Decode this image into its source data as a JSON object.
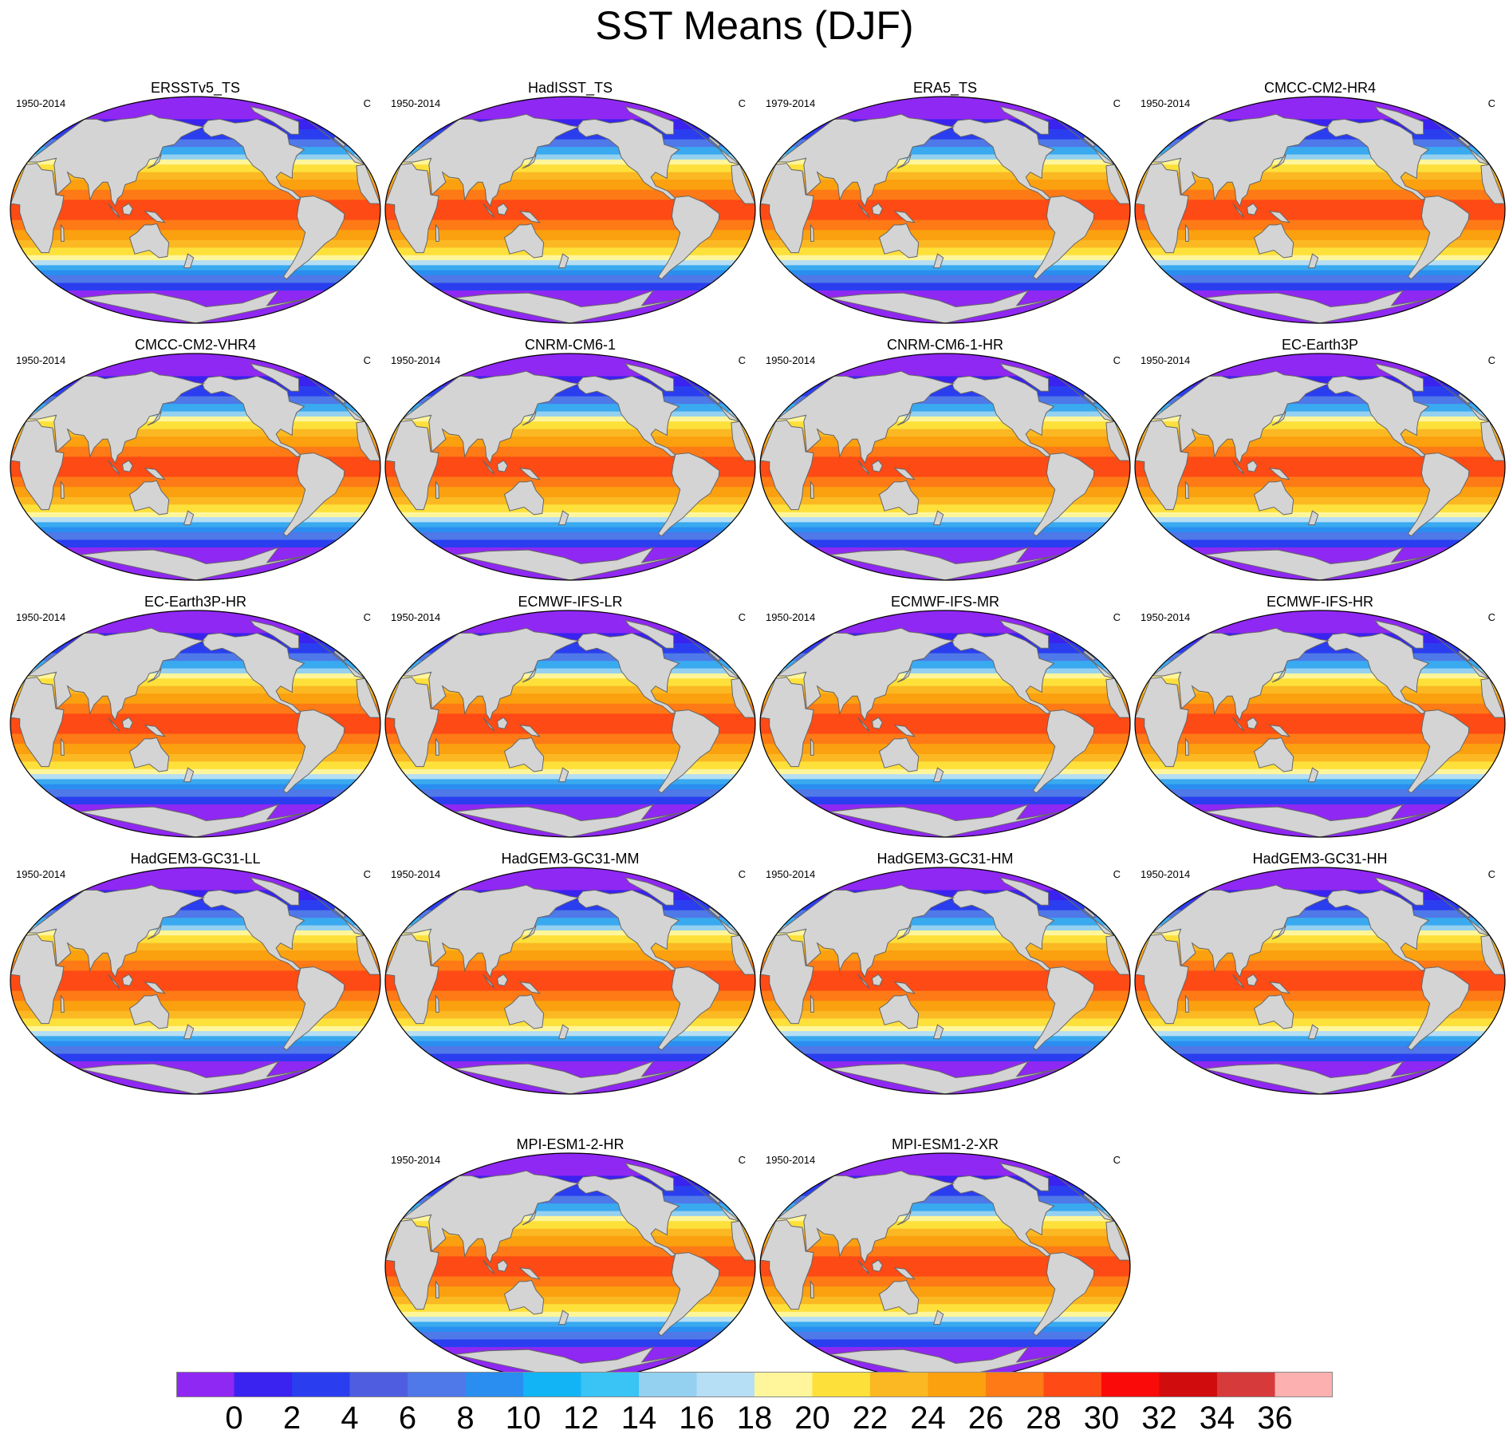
{
  "title": "SST Means (DJF)",
  "unit": "C",
  "colors": {
    "land": "#d4d4d4",
    "coast": "#666666",
    "bands": [
      {
        "lat_from": 90,
        "lat_to": 72,
        "color": "#8f28f2"
      },
      {
        "lat_from": 72,
        "lat_to": 64,
        "color": "#3a22f0"
      },
      {
        "lat_from": 64,
        "lat_to": 56,
        "color": "#2a3ef0"
      },
      {
        "lat_from": 56,
        "lat_to": 50,
        "color": "#4f78e8"
      },
      {
        "lat_from": 50,
        "lat_to": 44,
        "color": "#39a9f0"
      },
      {
        "lat_from": 44,
        "lat_to": 40,
        "color": "#94d0f0"
      },
      {
        "lat_from": 40,
        "lat_to": 36,
        "color": "#fff59a"
      },
      {
        "lat_from": 36,
        "lat_to": 30,
        "color": "#fde03a"
      },
      {
        "lat_from": 30,
        "lat_to": 24,
        "color": "#fbb823"
      },
      {
        "lat_from": 24,
        "lat_to": 16,
        "color": "#fba00e"
      },
      {
        "lat_from": 16,
        "lat_to": 8,
        "color": "#fd7a16"
      },
      {
        "lat_from": 8,
        "lat_to": -8,
        "color": "#fe4a14"
      },
      {
        "lat_from": -8,
        "lat_to": -16,
        "color": "#fd7a16"
      },
      {
        "lat_from": -16,
        "lat_to": -24,
        "color": "#fba00e"
      },
      {
        "lat_from": -24,
        "lat_to": -30,
        "color": "#fbb823"
      },
      {
        "lat_from": -30,
        "lat_to": -36,
        "color": "#fde03a"
      },
      {
        "lat_from": -36,
        "lat_to": -40,
        "color": "#fff59a"
      },
      {
        "lat_from": -40,
        "lat_to": -44,
        "color": "#b6def4"
      },
      {
        "lat_from": -44,
        "lat_to": -48,
        "color": "#39a9f0"
      },
      {
        "lat_from": -48,
        "lat_to": -52,
        "color": "#2a8ef0"
      },
      {
        "lat_from": -52,
        "lat_to": -58,
        "color": "#4f78e8"
      },
      {
        "lat_from": -58,
        "lat_to": -64,
        "color": "#2a3ef0"
      },
      {
        "lat_from": -64,
        "lat_to": -90,
        "color": "#8f28f2"
      }
    ]
  },
  "panels": [
    {
      "name": "ERSSTv5_TS",
      "period": "1950-2014"
    },
    {
      "name": "HadISST_TS",
      "period": "1950-2014"
    },
    {
      "name": "ERA5_TS",
      "period": "1979-2014"
    },
    {
      "name": "CMCC-CM2-HR4",
      "period": "1950-2014"
    },
    {
      "name": "CMCC-CM2-VHR4",
      "period": "1950-2014"
    },
    {
      "name": "CNRM-CM6-1",
      "period": "1950-2014"
    },
    {
      "name": "CNRM-CM6-1-HR",
      "period": "1950-2014"
    },
    {
      "name": "EC-Earth3P",
      "period": "1950-2014"
    },
    {
      "name": "EC-Earth3P-HR",
      "period": "1950-2014"
    },
    {
      "name": "ECMWF-IFS-LR",
      "period": "1950-2014"
    },
    {
      "name": "ECMWF-IFS-MR",
      "period": "1950-2014"
    },
    {
      "name": "ECMWF-IFS-HR",
      "period": "1950-2014"
    },
    {
      "name": "HadGEM3-GC31-LL",
      "period": "1950-2014"
    },
    {
      "name": "HadGEM3-GC31-MM",
      "period": "1950-2014"
    },
    {
      "name": "HadGEM3-GC31-HM",
      "period": "1950-2014"
    },
    {
      "name": "HadGEM3-GC31-HH",
      "period": "1950-2014"
    },
    {
      "name": "MPI-ESM1-2-HR",
      "period": "1950-2014"
    },
    {
      "name": "MPI-ESM1-2-XR",
      "period": "1950-2014"
    }
  ],
  "colorbar": {
    "colors": [
      "#8f28f2",
      "#3a22f0",
      "#2a3ef0",
      "#4f5ee0",
      "#4f78e8",
      "#2a8ef0",
      "#12b4f5",
      "#39c4f5",
      "#94d0f0",
      "#b6def4",
      "#fff59a",
      "#fde03a",
      "#fbb823",
      "#fba00e",
      "#fd7a16",
      "#fe4a14",
      "#fb0a0a",
      "#d10c0c",
      "#d73a3a",
      "#fdb0b0"
    ],
    "tick_labels": [
      "0",
      "2",
      "4",
      "6",
      "8",
      "10",
      "12",
      "14",
      "16",
      "18",
      "20",
      "22",
      "24",
      "26",
      "28",
      "30",
      "32",
      "34",
      "36"
    ]
  }
}
